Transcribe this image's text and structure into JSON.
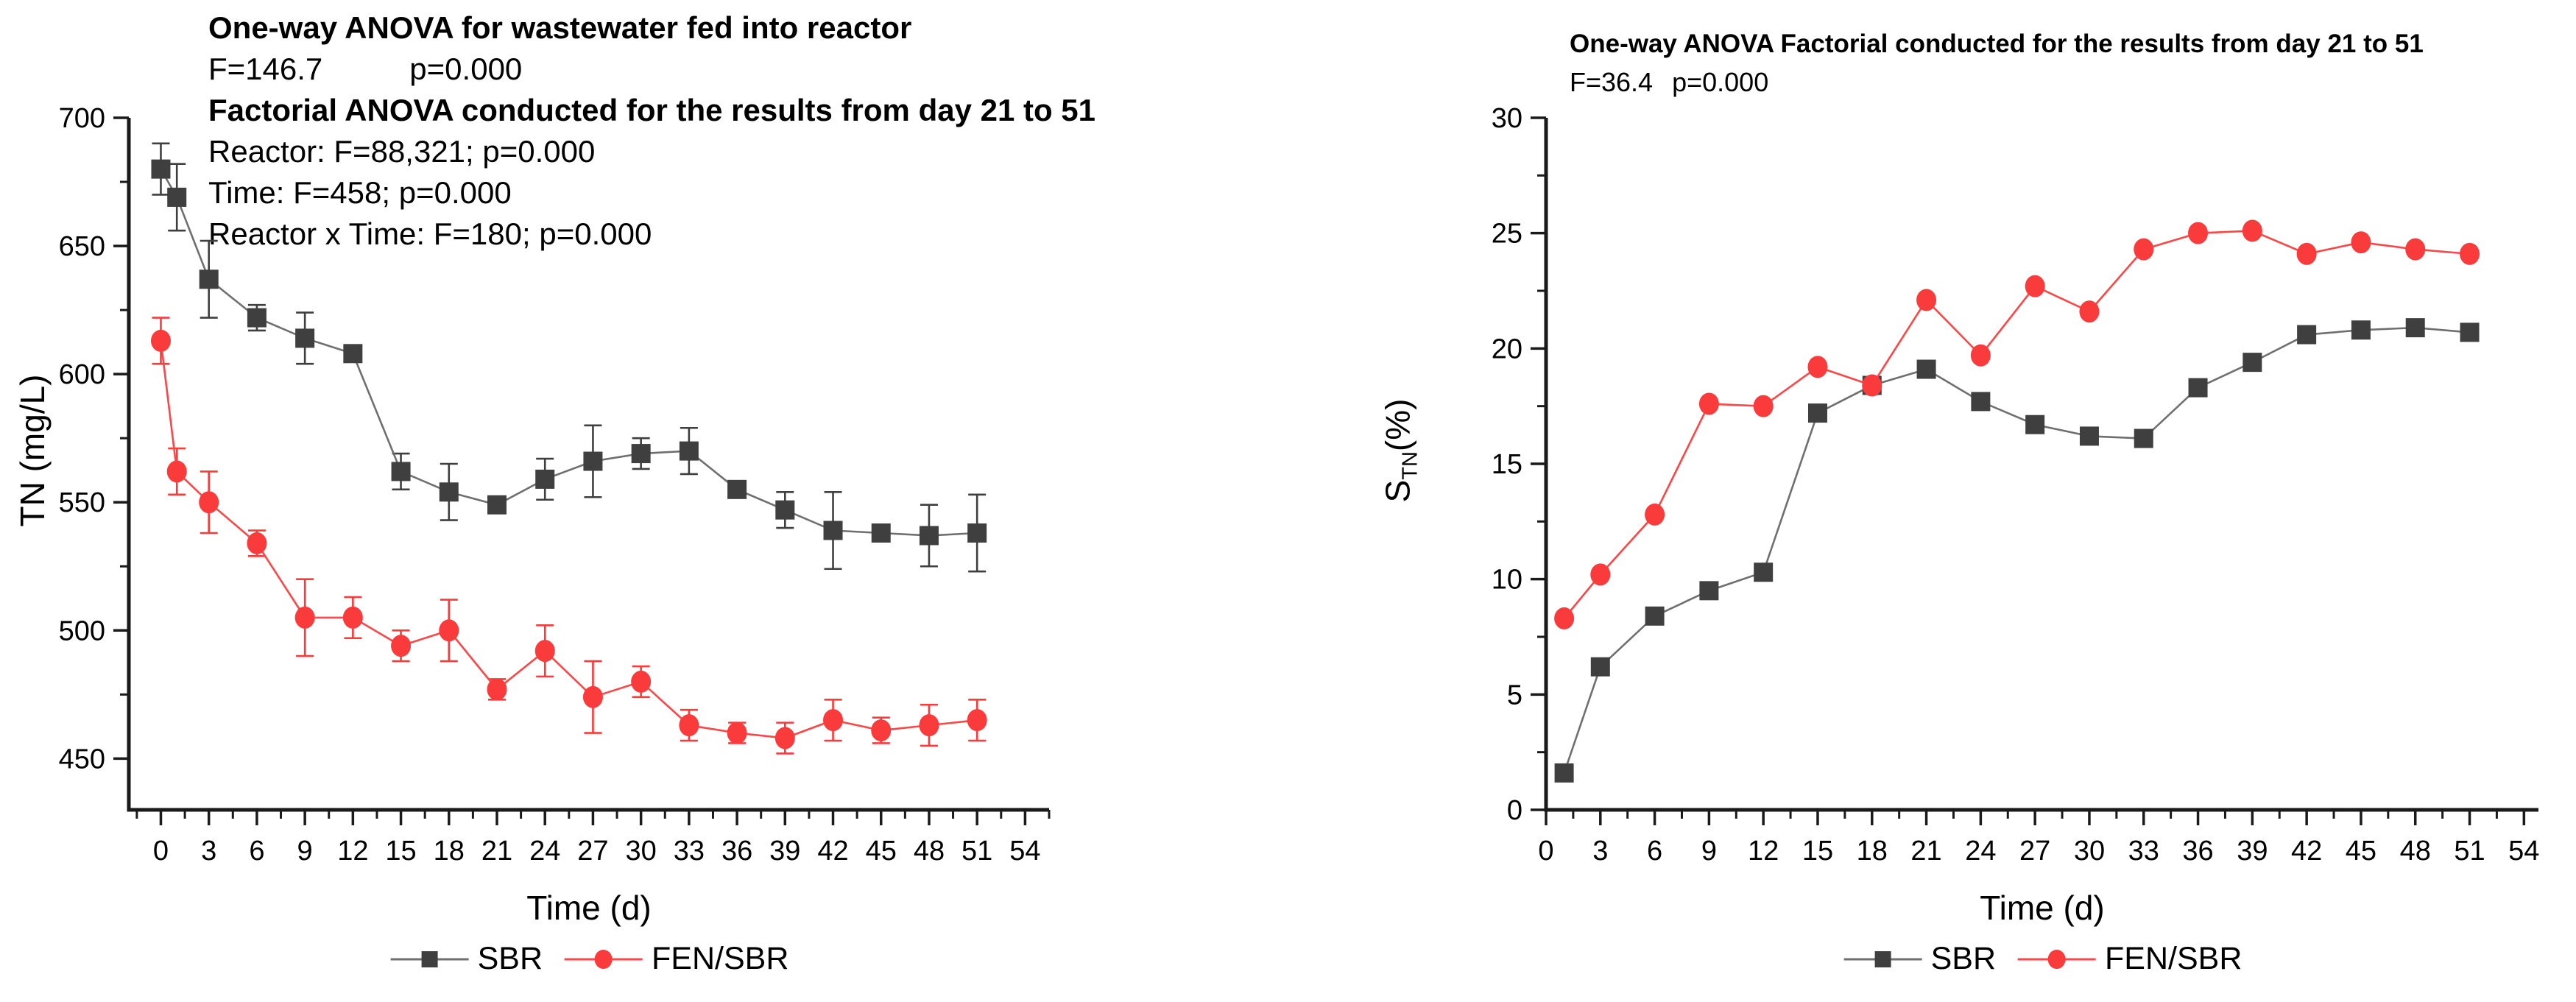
{
  "left": {
    "annotation": {
      "oneway_title": "One-way ANOVA for wastewater fed into reactor",
      "oneway_f": "F=146.7",
      "oneway_p": "p=0.000",
      "factorial_title": "Factorial ANOVA conducted for the results from day 21 to 51",
      "reactor": "Reactor: F=88,321; p=0.000",
      "time": "Time: F=458; p=0.000",
      "interaction": "Reactor x Time: F=180; p=0.000"
    },
    "ylabel": "TN (mg/L)",
    "xlabel": "Time (d)"
  },
  "right": {
    "title": "One-way ANOVA Factorial conducted for the results from day 21 to 51",
    "f": "F=36.4",
    "p": "p=0.000",
    "ylabel_main": "S",
    "ylabel_sub": "TN",
    "ylabel_unit": "(%)",
    "xlabel": "Time (d)"
  },
  "colors": {
    "sbr_marker": "#3F3F3F",
    "sbr_line": "#6F6F6F",
    "fen_marker": "#FA3B3B",
    "fen_line": "#FB4747",
    "axis": "#1A1A1A"
  },
  "chart_data": [
    {
      "type": "line",
      "title": "TN concentration in reactors",
      "xlabel": "Time (d)",
      "ylabel": "TN (mg/L)",
      "x": [
        0,
        1,
        3,
        6,
        9,
        12,
        15,
        18,
        21,
        24,
        27,
        30,
        33,
        36,
        39,
        42,
        45,
        48,
        51
      ],
      "series": [
        {
          "name": "SBR",
          "marker": "square",
          "marker_color": "#3F3F3F",
          "line_color": "#6F6F6F",
          "values": [
            680,
            669,
            637,
            622,
            614,
            608,
            562,
            554,
            549,
            559,
            566,
            569,
            570,
            555,
            547,
            539,
            538,
            537,
            538
          ],
          "errors": [
            10,
            13,
            15,
            5,
            10,
            2,
            7,
            11,
            3,
            8,
            14,
            6,
            9,
            2,
            7,
            15,
            2,
            12,
            15
          ]
        },
        {
          "name": "FEN/SBR",
          "marker": "circle",
          "marker_color": "#FA3B3B",
          "line_color": "#FB4747",
          "values": [
            613,
            562,
            550,
            534,
            505,
            505,
            494,
            500,
            477,
            492,
            474,
            480,
            463,
            460,
            458,
            465,
            461,
            463,
            465
          ],
          "errors": [
            9,
            9,
            12,
            5,
            15,
            8,
            6,
            12,
            4,
            10,
            14,
            6,
            6,
            4,
            6,
            8,
            5,
            8,
            8
          ]
        }
      ],
      "xlim": [
        -2,
        55.5
      ],
      "ylim": [
        430,
        700
      ],
      "xticks": [
        0,
        3,
        6,
        9,
        12,
        15,
        18,
        21,
        24,
        27,
        30,
        33,
        36,
        39,
        42,
        45,
        48,
        51,
        54
      ],
      "xminor": 1.5,
      "yticks": [
        450,
        500,
        550,
        600,
        650,
        700
      ],
      "yminor": 25,
      "grid": false,
      "legend_position": "bottom"
    },
    {
      "type": "line",
      "title": "TN removal efficiency",
      "xlabel": "Time (d)",
      "ylabel": "STN(%)",
      "x": [
        1,
        3,
        6,
        9,
        12,
        15,
        18,
        21,
        24,
        27,
        30,
        33,
        36,
        39,
        42,
        45,
        48,
        51
      ],
      "series": [
        {
          "name": "SBR",
          "marker": "square",
          "marker_color": "#3F3F3F",
          "line_color": "#6F6F6F",
          "values": [
            1.6,
            6.2,
            8.4,
            9.5,
            10.3,
            17.2,
            18.4,
            19.1,
            17.7,
            16.7,
            16.2,
            16.1,
            18.3,
            19.4,
            20.6,
            20.8,
            20.9,
            20.7
          ],
          "errors": null
        },
        {
          "name": "FEN/SBR",
          "marker": "circle",
          "marker_color": "#FA3B3B",
          "line_color": "#FB4747",
          "values": [
            8.3,
            10.2,
            12.8,
            17.6,
            17.5,
            19.2,
            18.4,
            22.1,
            19.7,
            22.7,
            21.6,
            24.3,
            25.0,
            25.1,
            24.1,
            24.6,
            24.3,
            24.1
          ],
          "errors": null
        }
      ],
      "xlim": [
        0,
        54.8
      ],
      "ylim": [
        0,
        30
      ],
      "xticks": [
        0,
        3,
        6,
        9,
        12,
        15,
        18,
        21,
        24,
        27,
        30,
        33,
        36,
        39,
        42,
        45,
        48,
        51,
        54
      ],
      "xminor": 1.5,
      "yticks": [
        0,
        5,
        10,
        15,
        20,
        25,
        30
      ],
      "yminor": 2.5,
      "grid": false,
      "legend_position": "bottom"
    }
  ]
}
